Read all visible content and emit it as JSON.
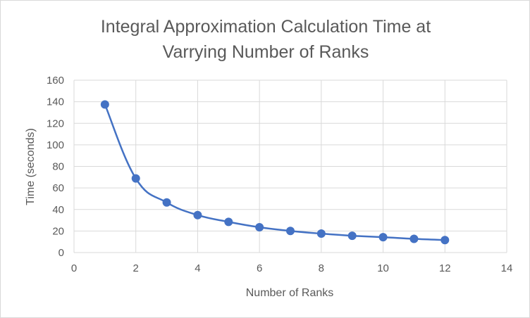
{
  "chart_data": {
    "type": "scatter",
    "title_lines": [
      "Integral Approximation Calculation Time at",
      "Varrying Number of Ranks"
    ],
    "xlabel": "Number of Ranks",
    "ylabel": "Time (seconds)",
    "xlim": [
      0,
      14
    ],
    "ylim": [
      0,
      160
    ],
    "x_ticks": [
      0,
      2,
      4,
      6,
      8,
      10,
      12,
      14
    ],
    "y_ticks": [
      0,
      20,
      40,
      60,
      80,
      100,
      120,
      140,
      160
    ],
    "grid": true,
    "legend": "none",
    "series": [
      {
        "x": [
          1,
          2,
          3,
          4,
          5,
          6,
          7,
          8,
          9,
          10,
          11,
          12
        ],
        "y": [
          137.5,
          68.8,
          46.5,
          34.8,
          28.5,
          23.5,
          20.1,
          17.6,
          15.6,
          14.3,
          12.7,
          11.6
        ],
        "color": "#4472c4",
        "line": "smooth",
        "markers": true
      }
    ]
  }
}
